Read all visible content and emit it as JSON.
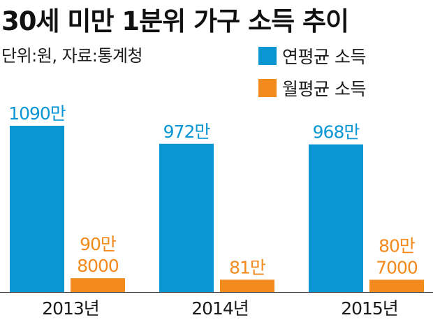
{
  "chart_data": {
    "type": "bar",
    "title": "30세 미만 1분위 가구 소득 추이",
    "subtitle": "단위:원, 자료:통계청",
    "categories": [
      "2013년",
      "2014년",
      "2015년"
    ],
    "series": [
      {
        "name": "연평균 소득",
        "color": "#0a95d3",
        "values": [
          10900000,
          9720000,
          9680000
        ],
        "labels": [
          [
            "1090만"
          ],
          [
            "972만"
          ],
          [
            "968만"
          ]
        ]
      },
      {
        "name": "월평균 소득",
        "color": "#f28a1e",
        "values": [
          908000,
          810000,
          807000
        ],
        "labels": [
          [
            "90만",
            "8000"
          ],
          [
            "81만"
          ],
          [
            "80만",
            "7000"
          ]
        ]
      }
    ],
    "ylim": [
      0,
      12000000
    ],
    "grid": false,
    "legend_position": "top-right"
  }
}
